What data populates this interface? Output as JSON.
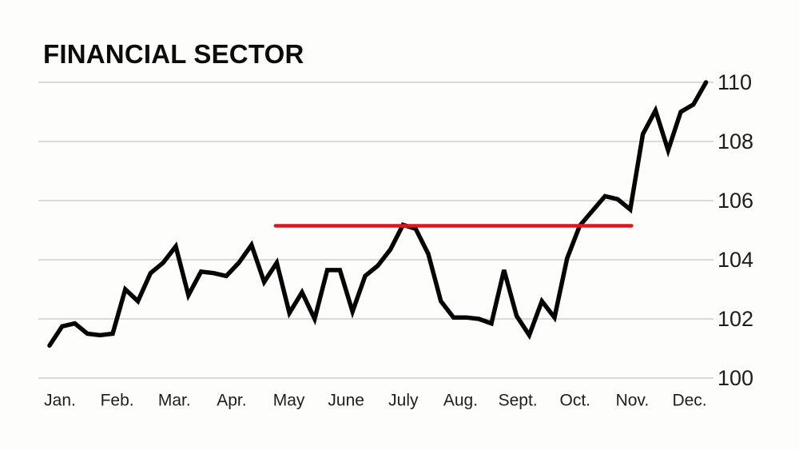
{
  "chart_data": {
    "type": "line",
    "title": "FINANCIAL SECTOR",
    "x_axis": {
      "tick_labels": [
        "Jan.",
        "Feb.",
        "Mar.",
        "Apr.",
        "May",
        "June",
        "July",
        "Aug.",
        "Sept.",
        "Oct.",
        "Nov.",
        "Dec."
      ]
    },
    "y_axis": {
      "tick_labels": [
        "100",
        "102",
        "104",
        "106",
        "108",
        "110"
      ],
      "range": [
        100,
        110
      ]
    },
    "grid": "horizontal",
    "legend": "none",
    "series": [
      {
        "name": "financial-sector-index",
        "color": "#050505",
        "frequency": "weekly",
        "values": [
          101.1,
          101.75,
          101.85,
          101.5,
          101.45,
          101.5,
          103.0,
          102.6,
          103.55,
          103.9,
          104.45,
          102.8,
          103.6,
          103.55,
          103.45,
          103.9,
          104.5,
          103.25,
          103.9,
          102.2,
          102.9,
          102.0,
          103.65,
          103.65,
          102.25,
          103.45,
          103.8,
          104.35,
          105.18,
          105.05,
          104.2,
          102.6,
          102.05,
          102.05,
          102.0,
          101.85,
          103.65,
          102.1,
          101.45,
          102.6,
          102.05,
          104.05,
          105.15,
          105.65,
          106.15,
          106.05,
          105.7,
          108.25,
          109.05,
          107.7,
          109.0,
          109.25,
          110.0
        ]
      }
    ],
    "annotations": [
      {
        "name": "flat-trend-line",
        "shape": "horizontal-segment",
        "color": "#d7191f",
        "value": 105.15,
        "x_start_week": 17.9,
        "x_end_week": 46.1
      }
    ],
    "colors": {
      "line": "#050505",
      "highlight": "#d7191f",
      "grid": "#c6c6c6",
      "text": "#1d1d1d",
      "background": "#fdfdfb"
    }
  }
}
